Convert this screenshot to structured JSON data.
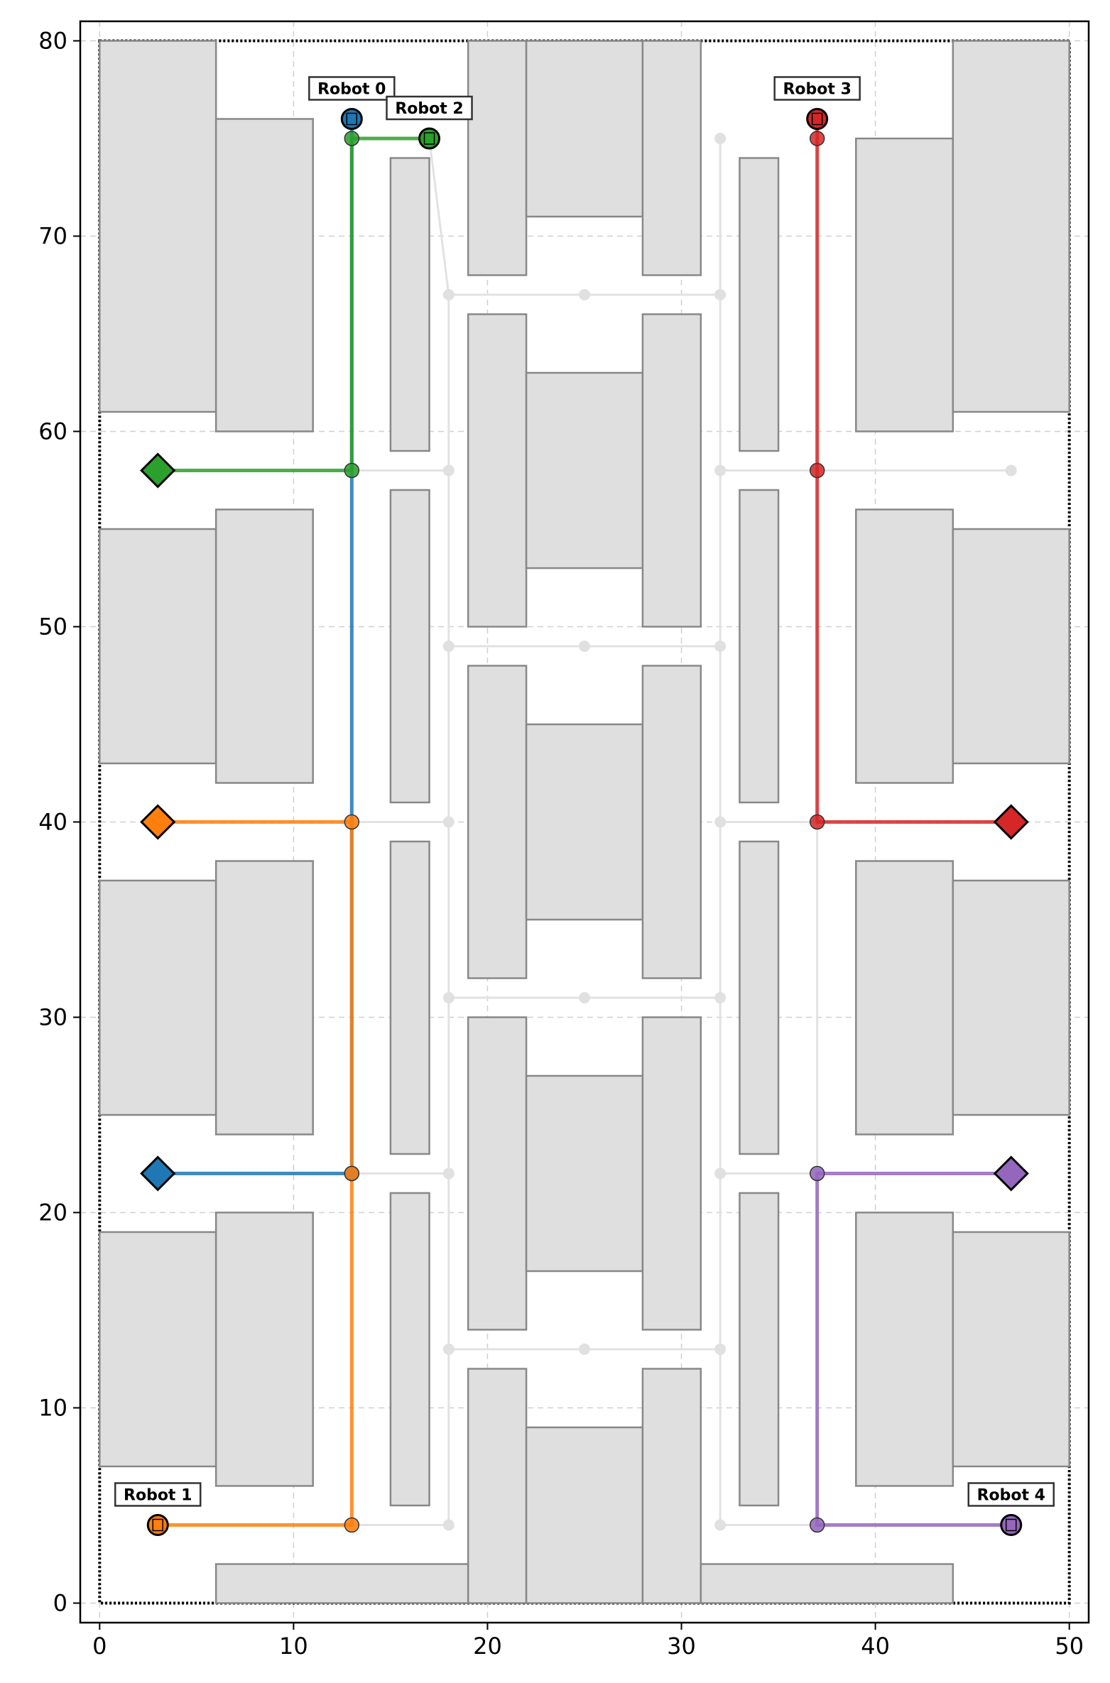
{
  "chart_data": {
    "type": "scatter",
    "title": "",
    "xlabel": "",
    "ylabel": "",
    "xlim": [
      -1,
      51
    ],
    "ylim": [
      -1,
      81
    ],
    "x_ticks": [
      0,
      10,
      20,
      30,
      40,
      50
    ],
    "y_ticks": [
      0,
      10,
      20,
      30,
      40,
      50,
      60,
      70,
      80
    ],
    "grid": true,
    "map_bounds": [
      0,
      0,
      50,
      80
    ],
    "obstacles": [
      [
        0,
        61,
        6,
        80
      ],
      [
        6,
        60,
        11,
        76
      ],
      [
        0,
        43,
        6,
        55
      ],
      [
        6,
        42,
        11,
        56
      ],
      [
        0,
        25,
        6,
        37
      ],
      [
        6,
        24,
        11,
        38
      ],
      [
        0,
        7,
        6,
        19
      ],
      [
        6,
        6,
        11,
        20
      ],
      [
        15,
        59,
        17,
        74
      ],
      [
        15,
        41,
        17,
        57
      ],
      [
        15,
        23,
        17,
        39
      ],
      [
        15,
        5,
        17,
        21
      ],
      [
        19,
        68,
        22,
        80
      ],
      [
        22,
        71,
        28,
        80
      ],
      [
        28,
        68,
        31,
        80
      ],
      [
        19,
        50,
        22,
        66
      ],
      [
        22,
        53,
        28,
        63
      ],
      [
        28,
        50,
        31,
        66
      ],
      [
        19,
        32,
        22,
        48
      ],
      [
        22,
        35,
        28,
        45
      ],
      [
        28,
        32,
        31,
        48
      ],
      [
        19,
        14,
        22,
        30
      ],
      [
        22,
        17,
        28,
        27
      ],
      [
        28,
        14,
        31,
        30
      ],
      [
        19,
        0,
        22,
        12
      ],
      [
        22,
        0,
        28,
        9
      ],
      [
        28,
        0,
        31,
        12
      ],
      [
        6,
        0,
        19,
        2
      ],
      [
        31,
        0,
        44,
        2
      ],
      [
        33,
        59,
        35,
        74
      ],
      [
        33,
        41,
        35,
        57
      ],
      [
        33,
        23,
        35,
        39
      ],
      [
        33,
        5,
        35,
        21
      ],
      [
        39,
        60,
        44,
        75
      ],
      [
        44,
        61,
        50,
        80
      ],
      [
        39,
        42,
        44,
        56
      ],
      [
        44,
        43,
        50,
        55
      ],
      [
        39,
        24,
        44,
        38
      ],
      [
        44,
        25,
        50,
        37
      ],
      [
        39,
        6,
        44,
        20
      ],
      [
        44,
        7,
        50,
        19
      ]
    ],
    "roadmap_nodes": [
      [
        13,
        75
      ],
      [
        18,
        67
      ],
      [
        25,
        67
      ],
      [
        32,
        67
      ],
      [
        32,
        75
      ],
      [
        13,
        58
      ],
      [
        18,
        58
      ],
      [
        32,
        58
      ],
      [
        37,
        58
      ],
      [
        47,
        58
      ],
      [
        18,
        49
      ],
      [
        25,
        49
      ],
      [
        32,
        49
      ],
      [
        13,
        40
      ],
      [
        18,
        40
      ],
      [
        32,
        40
      ],
      [
        37,
        40
      ],
      [
        18,
        31
      ],
      [
        25,
        31
      ],
      [
        32,
        31
      ],
      [
        13,
        22
      ],
      [
        18,
        22
      ],
      [
        32,
        22
      ],
      [
        37,
        22
      ],
      [
        18,
        13
      ],
      [
        25,
        13
      ],
      [
        32,
        13
      ],
      [
        13,
        4
      ],
      [
        18,
        4
      ],
      [
        32,
        4
      ],
      [
        37,
        4
      ]
    ],
    "roadmap_edges": [
      [
        [
          17,
          75
        ],
        [
          18,
          67
        ]
      ],
      [
        [
          18,
          67
        ],
        [
          32,
          67
        ]
      ],
      [
        [
          32,
          67
        ],
        [
          32,
          75
        ]
      ],
      [
        [
          13,
          58
        ],
        [
          18,
          58
        ]
      ],
      [
        [
          32,
          58
        ],
        [
          47,
          58
        ]
      ],
      [
        [
          18,
          67
        ],
        [
          18,
          4
        ]
      ],
      [
        [
          32,
          75
        ],
        [
          32,
          4
        ]
      ],
      [
        [
          18,
          49
        ],
        [
          32,
          49
        ]
      ],
      [
        [
          18,
          31
        ],
        [
          32,
          31
        ]
      ],
      [
        [
          18,
          13
        ],
        [
          32,
          13
        ]
      ],
      [
        [
          13,
          40
        ],
        [
          18,
          40
        ]
      ],
      [
        [
          32,
          40
        ],
        [
          37,
          40
        ]
      ],
      [
        [
          13,
          22
        ],
        [
          18,
          22
        ]
      ],
      [
        [
          32,
          22
        ],
        [
          37,
          22
        ]
      ],
      [
        [
          13,
          4
        ],
        [
          18,
          4
        ]
      ],
      [
        [
          32,
          4
        ],
        [
          37,
          4
        ]
      ],
      [
        [
          37,
          76
        ],
        [
          37,
          4
        ]
      ]
    ],
    "robots": [
      {
        "name": "Robot 0",
        "color": "#1f77b4",
        "start": [
          13,
          76
        ],
        "goal": [
          3,
          22
        ],
        "path": [
          [
            13,
            76
          ],
          [
            13,
            22
          ],
          [
            3,
            22
          ]
        ],
        "waypoints": [
          [
            13,
            22
          ]
        ]
      },
      {
        "name": "Robot 1",
        "color": "#ff7f0e",
        "start": [
          3,
          4
        ],
        "goal": [
          3,
          40
        ],
        "path": [
          [
            3,
            4
          ],
          [
            13,
            4
          ],
          [
            13,
            40
          ],
          [
            3,
            40
          ]
        ],
        "waypoints": [
          [
            13,
            4
          ],
          [
            13,
            22
          ],
          [
            13,
            40
          ]
        ]
      },
      {
        "name": "Robot 2",
        "color": "#2ca02c",
        "start": [
          17,
          75
        ],
        "goal": [
          3,
          58
        ],
        "path": [
          [
            17,
            75
          ],
          [
            13,
            75
          ],
          [
            13,
            58
          ],
          [
            3,
            58
          ]
        ],
        "waypoints": [
          [
            13,
            75
          ],
          [
            13,
            58
          ]
        ]
      },
      {
        "name": "Robot 3",
        "color": "#d62728",
        "start": [
          37,
          76
        ],
        "goal": [
          47,
          40
        ],
        "path": [
          [
            37,
            76
          ],
          [
            37,
            40
          ],
          [
            47,
            40
          ]
        ],
        "waypoints": [
          [
            37,
            75
          ],
          [
            37,
            58
          ],
          [
            37,
            40
          ]
        ]
      },
      {
        "name": "Robot 4",
        "color": "#9467bd",
        "start": [
          47,
          4
        ],
        "goal": [
          47,
          22
        ],
        "path": [
          [
            47,
            4
          ],
          [
            37,
            4
          ],
          [
            37,
            22
          ],
          [
            47,
            22
          ]
        ],
        "waypoints": [
          [
            37,
            4
          ],
          [
            37,
            22
          ]
        ]
      }
    ]
  }
}
